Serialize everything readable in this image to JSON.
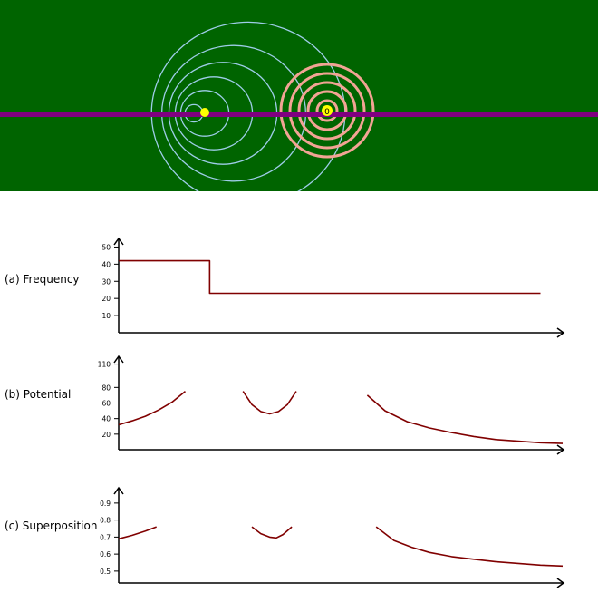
{
  "colors": {
    "background": "#006400",
    "wave_line": "#800080",
    "left_rings": "#9ecde8",
    "right_rings": "#f2a494",
    "source_fill": "#ffff00",
    "curve": "#800000",
    "axis": "#000000"
  },
  "sources": [
    {
      "label": "",
      "rings": "blue"
    },
    {
      "label": "0",
      "rings": "red"
    }
  ],
  "chart_data": [
    {
      "type": "line",
      "label": "(a)  Frequency",
      "yticks": [
        10,
        20,
        30,
        40,
        50
      ],
      "ylim": [
        0,
        55
      ],
      "xlim": [
        0,
        100
      ],
      "series": [
        {
          "x": [
            0,
            20.5,
            20.5,
            95
          ],
          "y": [
            42,
            42,
            23,
            23
          ]
        }
      ]
    },
    {
      "type": "line",
      "label": "(b) Potential",
      "yticks": [
        20,
        40,
        60,
        80,
        110
      ],
      "ylim": [
        0,
        120
      ],
      "xlim": [
        0,
        100
      ],
      "series": [
        {
          "x": [
            0,
            3,
            6,
            9,
            12,
            15
          ],
          "y": [
            32,
            37,
            43,
            51,
            61,
            75
          ]
        },
        {
          "x": [
            28,
            30,
            32,
            34,
            36,
            38,
            40
          ],
          "y": [
            75,
            58,
            49,
            46,
            49,
            58,
            75
          ]
        },
        {
          "x": [
            56,
            60,
            65,
            70,
            75,
            80,
            85,
            90,
            95,
            100
          ],
          "y": [
            70,
            50,
            36,
            28,
            22,
            17,
            13,
            11,
            9,
            8
          ]
        }
      ]
    },
    {
      "type": "line",
      "label": "(c) Superposition",
      "yticks": [
        0.5,
        0.6,
        0.7,
        0.8,
        0.9
      ],
      "ylim": [
        0.43,
        0.99
      ],
      "xlim": [
        0,
        100
      ],
      "series": [
        {
          "x": [
            0,
            3,
            6,
            8.5
          ],
          "y": [
            0.69,
            0.71,
            0.735,
            0.76
          ]
        },
        {
          "x": [
            30,
            32,
            34,
            35.5,
            37,
            39
          ],
          "y": [
            0.76,
            0.72,
            0.7,
            0.695,
            0.715,
            0.76
          ]
        },
        {
          "x": [
            58,
            62,
            66,
            70,
            75,
            80,
            85,
            90,
            95,
            100
          ],
          "y": [
            0.76,
            0.68,
            0.64,
            0.61,
            0.585,
            0.57,
            0.555,
            0.545,
            0.535,
            0.53
          ]
        }
      ]
    }
  ]
}
